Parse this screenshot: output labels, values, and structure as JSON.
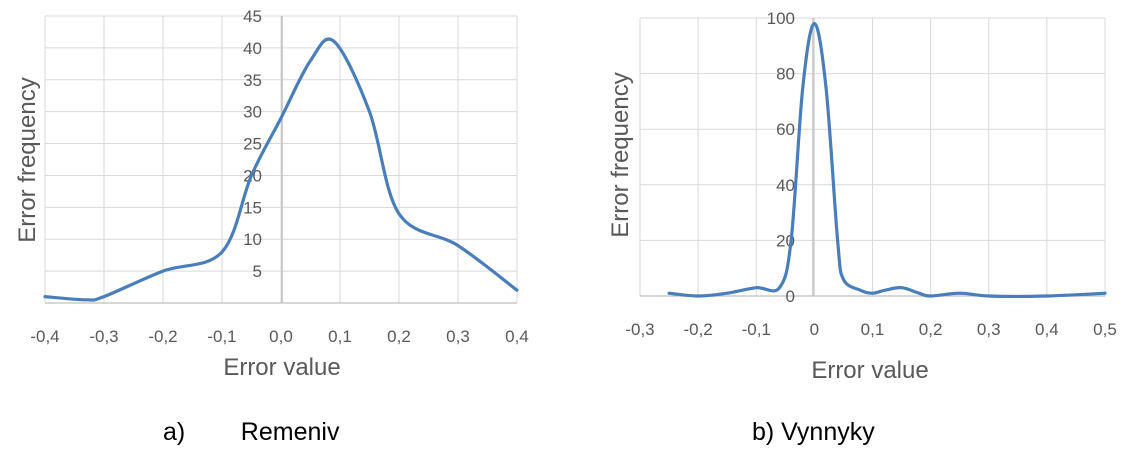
{
  "chart_data": [
    {
      "type": "line",
      "caption": "a)        Remeniv",
      "xlabel": "Error value",
      "ylabel": "Error frequency",
      "xlim": [
        -0.4,
        0.4
      ],
      "ylim": [
        0,
        45
      ],
      "x_ticks": [
        "-0,4",
        "-0,3",
        "-0,2",
        "-0,1",
        "0,0",
        "0,1",
        "0,2",
        "0,3",
        "0,4"
      ],
      "y_ticks": [
        "5",
        "10",
        "15",
        "20",
        "25",
        "30",
        "35",
        "40",
        "45"
      ],
      "y_tick_values": [
        5,
        10,
        15,
        20,
        25,
        30,
        35,
        40,
        45
      ],
      "grid": true,
      "line_color": "#4a7ebb",
      "series": [
        {
          "x": [
            -0.4,
            -0.33,
            -0.3,
            -0.2,
            -0.1,
            -0.05,
            0.0,
            0.05,
            0.09,
            0.15,
            0.2,
            0.3,
            0.4
          ],
          "y": [
            1,
            0.5,
            1,
            5,
            8,
            20,
            29,
            38,
            41,
            30,
            14,
            9,
            2
          ]
        }
      ]
    },
    {
      "type": "line",
      "caption": "b) Vynnyky",
      "xlabel": "Error value",
      "ylabel": "Error frequency",
      "xlim": [
        -0.3,
        0.5
      ],
      "ylim": [
        0,
        100
      ],
      "x_ticks": [
        "-0,3",
        "-0,2",
        "-0,1",
        "0",
        "0,1",
        "0,2",
        "0,3",
        "0,4",
        "0,5"
      ],
      "y_ticks": [
        "0",
        "20",
        "40",
        "60",
        "80",
        "100"
      ],
      "y_tick_values": [
        0,
        20,
        40,
        60,
        80,
        100
      ],
      "grid": true,
      "line_color": "#4a7ebb",
      "series": [
        {
          "x": [
            -0.25,
            -0.2,
            -0.15,
            -0.1,
            -0.06,
            -0.04,
            -0.02,
            0.0,
            0.02,
            0.04,
            0.05,
            0.08,
            0.1,
            0.12,
            0.15,
            0.18,
            0.2,
            0.25,
            0.3,
            0.4,
            0.5
          ],
          "y": [
            1,
            0,
            1,
            3,
            3,
            20,
            75,
            98,
            75,
            20,
            6,
            2,
            1,
            2,
            3,
            1,
            0,
            1,
            0,
            0,
            1
          ]
        }
      ]
    }
  ]
}
